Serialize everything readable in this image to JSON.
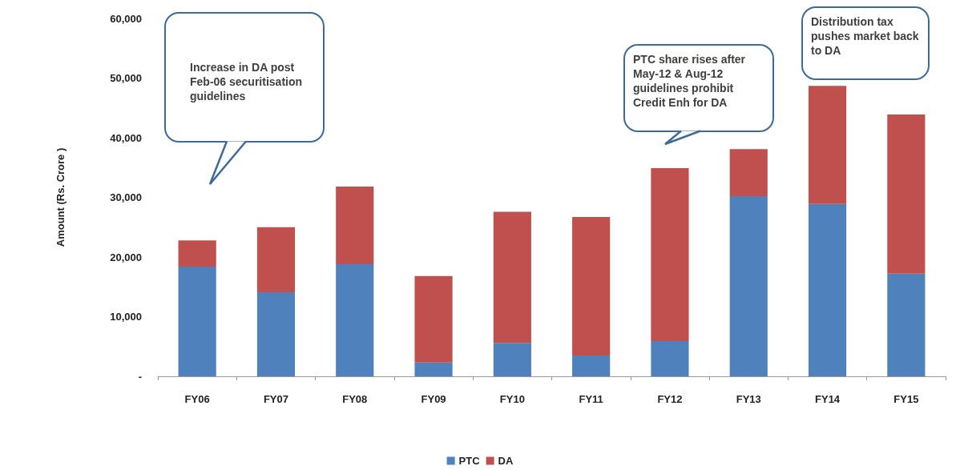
{
  "chart_data": {
    "type": "bar",
    "stacked": true,
    "ylabel": "Amount (Rs. Crore )",
    "categories": [
      "FY06",
      "FY07",
      "FY08",
      "FY09",
      "FY10",
      "FY11",
      "FY12",
      "FY13",
      "FY14",
      "FY15"
    ],
    "series": [
      {
        "name": "PTC",
        "color": "#4f81bd",
        "values": [
          18400,
          14100,
          18800,
          2300,
          5600,
          3500,
          5900,
          30200,
          28900,
          17200
        ]
      },
      {
        "name": "DA",
        "color": "#c0504d",
        "values": [
          4400,
          10900,
          13000,
          14500,
          22000,
          23200,
          29000,
          7900,
          19800,
          26700
        ]
      }
    ],
    "ylim": [
      0,
      60000
    ],
    "yticks": [
      {
        "value": 0,
        "label": "-"
      },
      {
        "value": 10000,
        "label": "10,000"
      },
      {
        "value": 20000,
        "label": "20,000"
      },
      {
        "value": 30000,
        "label": "30,000"
      },
      {
        "value": 40000,
        "label": "40,000"
      },
      {
        "value": 50000,
        "label": "50,000"
      },
      {
        "value": 60000,
        "label": "60,000"
      }
    ],
    "grid": false,
    "legend": "bottom",
    "annotations": [
      "Increase in DA post Feb-06 securitisation guidelines",
      "PTC share rises after May-12 & Aug-12 guidelines prohibit Credit Enh for DA",
      "Distribution tax pushes market back to DA"
    ]
  }
}
